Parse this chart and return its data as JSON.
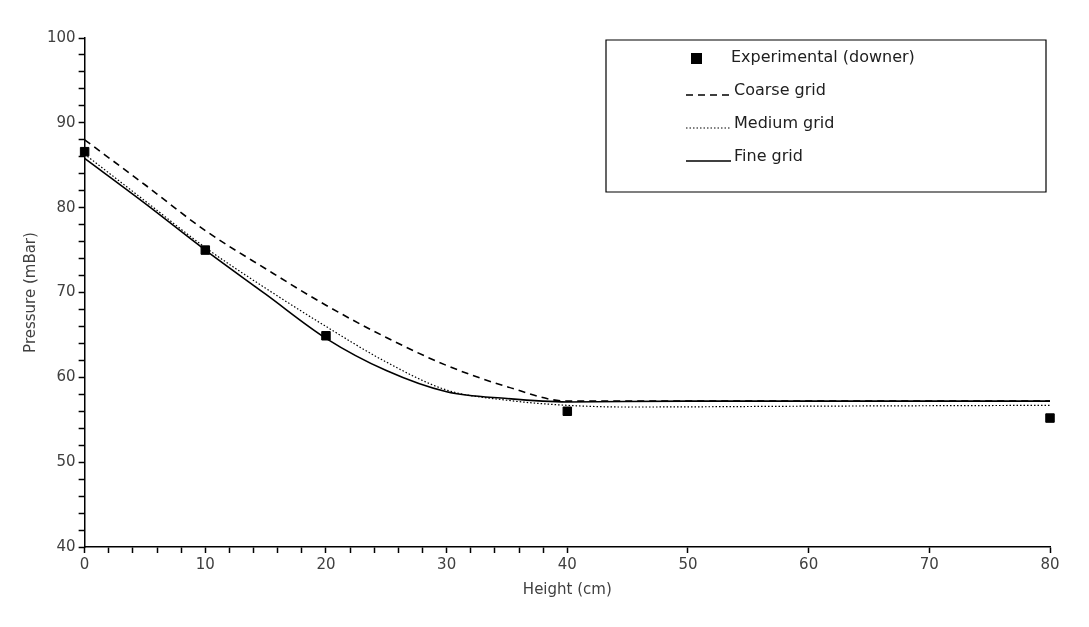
{
  "chart_data": {
    "type": "line",
    "xlabel": "Height (cm)",
    "ylabel": "Pressure (mBar)",
    "xlim": [
      0,
      80
    ],
    "ylim": [
      40,
      100
    ],
    "xticks": [
      0,
      {
        "value": 2,
        "label": null
      },
      {
        "value": 4,
        "label": null
      },
      {
        "value": 6,
        "label": null
      },
      {
        "value": 8,
        "label": null
      },
      10,
      {
        "value": 12,
        "label": null
      },
      {
        "value": 14,
        "label": null
      },
      {
        "value": 16,
        "label": null
      },
      {
        "value": 18,
        "label": null
      },
      20,
      {
        "value": 22,
        "label": null
      },
      {
        "value": 24,
        "label": null
      },
      {
        "value": 26,
        "label": null
      },
      {
        "value": 28,
        "label": null
      },
      30,
      {
        "value": 32,
        "label": null
      },
      {
        "value": 34,
        "label": null
      },
      {
        "value": 36,
        "label": null
      },
      {
        "value": 38,
        "label": null
      },
      40,
      50,
      60,
      70,
      80
    ],
    "yticks": [
      40,
      {
        "value": 42,
        "label": null
      },
      {
        "value": 44,
        "label": null
      },
      {
        "value": 46,
        "label": null
      },
      {
        "value": 48,
        "label": null
      },
      50,
      {
        "value": 52,
        "label": null
      },
      {
        "value": 54,
        "label": null
      },
      {
        "value": 56,
        "label": null
      },
      {
        "value": 58,
        "label": null
      },
      60,
      {
        "value": 62,
        "label": null
      },
      {
        "value": 64,
        "label": null
      },
      {
        "value": 66,
        "label": null
      },
      {
        "value": 68,
        "label": null
      },
      70,
      {
        "value": 72,
        "label": null
      },
      {
        "value": 74,
        "label": null
      },
      {
        "value": 76,
        "label": null
      },
      {
        "value": 78,
        "label": null
      },
      80,
      {
        "value": 82,
        "label": null
      },
      {
        "value": 84,
        "label": null
      },
      {
        "value": 86,
        "label": null
      },
      {
        "value": 88,
        "label": null
      },
      90,
      {
        "value": 92,
        "label": null
      },
      {
        "value": 94,
        "label": null
      },
      {
        "value": 96,
        "label": null
      },
      {
        "value": 98,
        "label": null
      },
      100
    ],
    "grid": false,
    "legend": "top right",
    "series": [
      {
        "name": "Experimental (downer)",
        "type": "scatter",
        "marker": "square",
        "color": "#000000",
        "x": [
          0,
          10,
          20,
          40,
          80
        ],
        "values": [
          86.6,
          75,
          64.9,
          56,
          55.2
        ]
      },
      {
        "name": "Coarse grid",
        "type": "line",
        "line_style": "dashed",
        "color": "#000000",
        "x": [
          0,
          5,
          10,
          15,
          20,
          25,
          30,
          35,
          40,
          50,
          60,
          70,
          80
        ],
        "values": [
          88,
          82.7,
          77.3,
          72.8,
          68.5,
          64.7,
          61.4,
          58.9,
          57.2,
          57.2,
          57.2,
          57.2,
          57.2
        ]
      },
      {
        "name": "Medium grid",
        "type": "line",
        "line_style": "dotted",
        "color": "#000000",
        "x": [
          0,
          5,
          10,
          15,
          20,
          25,
          30,
          35,
          40,
          45,
          60,
          80
        ],
        "values": [
          86.3,
          80.8,
          75.3,
          70.5,
          66,
          61.8,
          58.5,
          57.3,
          56.7,
          56.5,
          56.6,
          56.7
        ]
      },
      {
        "name": "Fine grid",
        "type": "line",
        "line_style": "solid",
        "color": "#000000",
        "x": [
          0,
          5,
          10,
          15,
          20,
          25,
          30,
          35,
          40,
          50,
          60,
          80
        ],
        "values": [
          85.8,
          80.5,
          75,
          69.8,
          64.6,
          60.8,
          58.3,
          57.5,
          57.1,
          57.2,
          57.2,
          57.2
        ]
      }
    ]
  }
}
